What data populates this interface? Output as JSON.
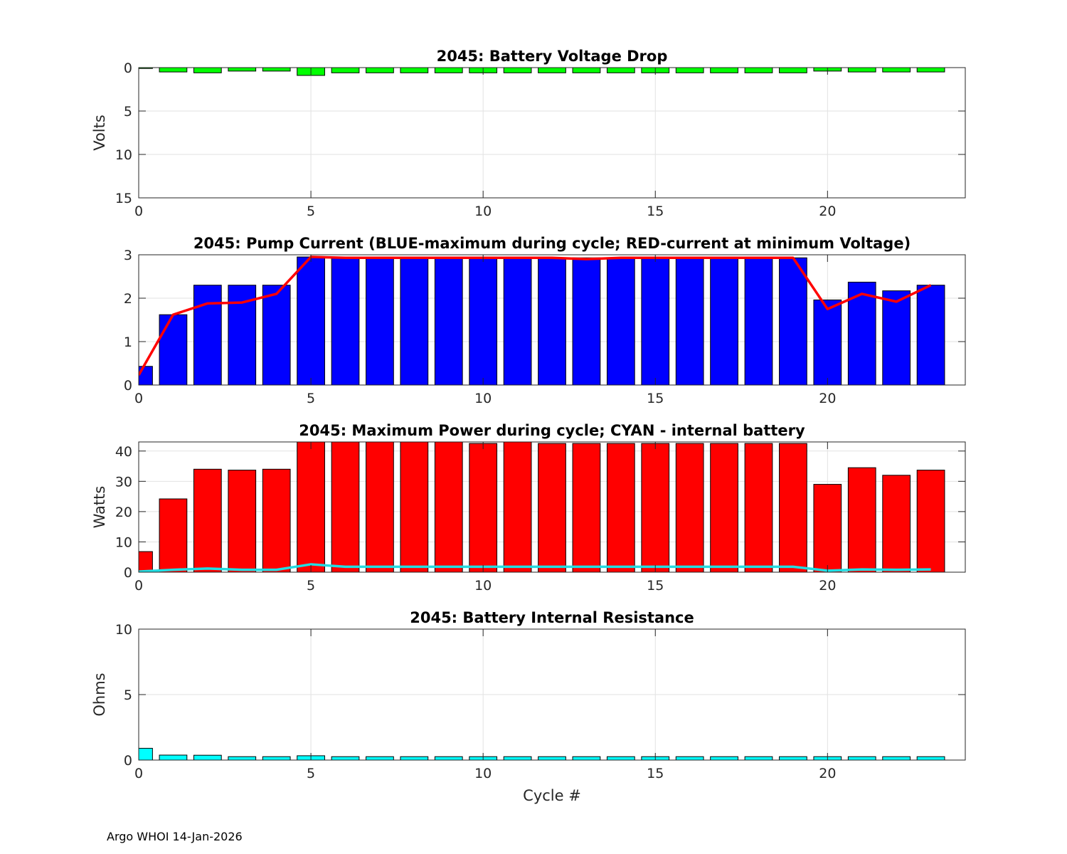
{
  "footer": "Argo WHOI 14-Jan-2026",
  "colors": {
    "green": "#00ff00",
    "blue": "#0000ff",
    "red": "#ff0000",
    "cyan": "#00ffff",
    "red_line": "#ff0000",
    "cyan_line": "#22dde2"
  },
  "chart_data": [
    {
      "type": "bar",
      "title": "2045: Battery Voltage Drop",
      "xlabel": "",
      "ylabel": "Volts",
      "xlim": [
        0,
        24
      ],
      "ylim": [
        0,
        15
      ],
      "y_reversed": true,
      "xticks": [
        0,
        5,
        10,
        15,
        20
      ],
      "yticks": [
        0,
        5,
        10,
        15
      ],
      "grid": true,
      "x": [
        0,
        1,
        2,
        3,
        4,
        5,
        6,
        7,
        8,
        9,
        10,
        11,
        12,
        13,
        14,
        15,
        16,
        17,
        18,
        19,
        20,
        21,
        22,
        23
      ],
      "series": [
        {
          "name": "Voltage Drop",
          "kind": "bar",
          "color": "green",
          "values": [
            0.1,
            0.5,
            0.6,
            0.4,
            0.4,
            0.9,
            0.6,
            0.6,
            0.6,
            0.6,
            0.6,
            0.6,
            0.6,
            0.6,
            0.6,
            0.6,
            0.6,
            0.6,
            0.6,
            0.6,
            0.4,
            0.5,
            0.5,
            0.5
          ]
        }
      ]
    },
    {
      "type": "bar",
      "title": "2045: Pump Current (BLUE-maximum during cycle; RED-current at minimum Voltage)",
      "xlabel": "",
      "ylabel": "",
      "xlim": [
        0,
        24
      ],
      "ylim": [
        0,
        3
      ],
      "y_reversed": false,
      "xticks": [
        0,
        5,
        10,
        15,
        20
      ],
      "yticks": [
        0,
        1,
        2,
        3
      ],
      "grid": true,
      "x": [
        0,
        1,
        2,
        3,
        4,
        5,
        6,
        7,
        8,
        9,
        10,
        11,
        12,
        13,
        14,
        15,
        16,
        17,
        18,
        19,
        20,
        21,
        22,
        23
      ],
      "series": [
        {
          "name": "Maximum current during cycle",
          "kind": "bar",
          "color": "blue",
          "values": [
            0.43,
            1.62,
            2.3,
            2.3,
            2.3,
            2.95,
            2.93,
            2.93,
            2.93,
            2.95,
            2.93,
            2.93,
            2.93,
            2.93,
            2.93,
            2.93,
            2.93,
            2.93,
            2.93,
            2.93,
            1.96,
            2.37,
            2.17,
            2.3
          ]
        },
        {
          "name": "Current at minimum voltage",
          "kind": "line",
          "color": "red_line",
          "values": [
            0.23,
            1.62,
            1.88,
            1.9,
            2.1,
            2.95,
            2.93,
            2.93,
            2.93,
            2.93,
            2.93,
            2.93,
            2.93,
            2.9,
            2.93,
            2.93,
            2.93,
            2.93,
            2.93,
            2.93,
            1.75,
            2.1,
            1.92,
            2.3
          ]
        }
      ]
    },
    {
      "type": "bar",
      "title": "2045: Maximum Power during cycle; CYAN - internal battery",
      "xlabel": "",
      "ylabel": "Watts",
      "xlim": [
        0,
        24
      ],
      "ylim": [
        0,
        43
      ],
      "y_reversed": false,
      "xticks": [
        0,
        5,
        10,
        15,
        20
      ],
      "yticks": [
        0,
        10,
        20,
        30,
        40
      ],
      "grid": true,
      "x": [
        0,
        1,
        2,
        3,
        4,
        5,
        6,
        7,
        8,
        9,
        10,
        11,
        12,
        13,
        14,
        15,
        16,
        17,
        18,
        19,
        20,
        21,
        22,
        23
      ],
      "series": [
        {
          "name": "Maximum power",
          "kind": "bar",
          "color": "red",
          "values": [
            6.8,
            24.2,
            34,
            33.7,
            34,
            43,
            43,
            43,
            43,
            43,
            42.5,
            43,
            42.5,
            42.5,
            42.5,
            42.5,
            42.5,
            42.5,
            42.5,
            42.5,
            29,
            34.5,
            32,
            33.7
          ]
        },
        {
          "name": "Internal battery",
          "kind": "line",
          "color": "cyan_line",
          "values": [
            0.2,
            0.8,
            1.2,
            0.8,
            0.8,
            2.6,
            1.8,
            1.8,
            1.8,
            1.8,
            1.8,
            1.8,
            1.8,
            1.8,
            1.8,
            1.8,
            1.8,
            1.8,
            1.8,
            1.8,
            0.5,
            0.9,
            0.8,
            0.9
          ]
        }
      ]
    },
    {
      "type": "bar",
      "title": "2045: Battery Internal Resistance",
      "xlabel": "Cycle #",
      "ylabel": "Ohms",
      "xlim": [
        0,
        24
      ],
      "ylim": [
        0,
        10
      ],
      "y_reversed": false,
      "xticks": [
        0,
        5,
        10,
        15,
        20
      ],
      "yticks": [
        0,
        5,
        10
      ],
      "grid": true,
      "x": [
        0,
        1,
        2,
        3,
        4,
        5,
        6,
        7,
        8,
        9,
        10,
        11,
        12,
        13,
        14,
        15,
        16,
        17,
        18,
        19,
        20,
        21,
        22,
        23
      ],
      "series": [
        {
          "name": "Internal resistance",
          "kind": "bar",
          "color": "cyan",
          "values": [
            0.9,
            0.38,
            0.37,
            0.26,
            0.26,
            0.33,
            0.26,
            0.26,
            0.26,
            0.26,
            0.26,
            0.26,
            0.26,
            0.26,
            0.26,
            0.26,
            0.26,
            0.26,
            0.26,
            0.26,
            0.26,
            0.26,
            0.26,
            0.26
          ]
        }
      ]
    }
  ]
}
